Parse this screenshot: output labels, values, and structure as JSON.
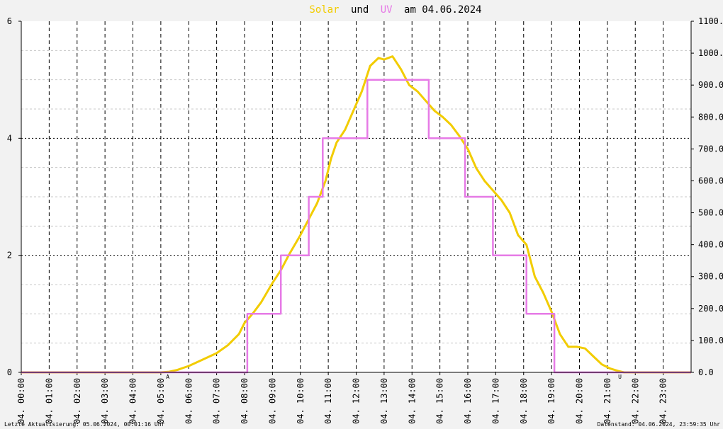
{
  "title": {
    "w1": "Solar",
    "w2": "und",
    "w3": "UV",
    "w4": "am 04.06.2024"
  },
  "footer": {
    "left": "Letzte Aktualisierung: 05.06.2024, 00:01:16 Uhr",
    "right": "Datenstand: 04.06.2024, 23:59:35 Uhr"
  },
  "markers": {
    "sunrise": "A",
    "sunset": "U"
  },
  "colors": {
    "solar": "#f2cc00",
    "uv": "#e67ae6",
    "sunmark": "#cc0000",
    "grid": "#000000"
  },
  "chart_data": {
    "type": "line",
    "title": "Solar und UV am 04.06.2024",
    "x_axis": {
      "range_hours": [
        0,
        24
      ],
      "tick_labels": [
        "04. 00:00",
        "04. 01:00",
        "04. 02:00",
        "04. 03:00",
        "04. 04:00",
        "04. 05:00",
        "04. 06:00",
        "04. 07:00",
        "04. 08:00",
        "04. 09:00",
        "04. 10:00",
        "04. 11:00",
        "04. 12:00",
        "04. 13:00",
        "04. 14:00",
        "04. 15:00",
        "04. 16:00",
        "04. 17:00",
        "04. 18:00",
        "04. 19:00",
        "04. 20:00",
        "04. 21:00",
        "04. 22:00",
        "04. 23:00"
      ]
    },
    "y_left": {
      "range": [
        0,
        6
      ],
      "tick_labels": [
        "0",
        "2",
        "4",
        "6"
      ],
      "minor_step": 0.5
    },
    "y_right": {
      "range": [
        0,
        1100
      ],
      "tick_labels": [
        "0.0",
        "100.0",
        "200.0",
        "300.0",
        "400.0",
        "500.0",
        "600.0",
        "700.0",
        "800.0",
        "900.0",
        "1000.0",
        "1100.0"
      ]
    },
    "grid": true,
    "sun_markers_hours": {
      "sunrise": 5.25,
      "sunset": 21.45
    },
    "series": [
      {
        "name": "Solar",
        "axis": "right",
        "color": "#f2cc00",
        "points": [
          [
            0,
            0
          ],
          [
            5.0,
            0
          ],
          [
            5.3,
            2
          ],
          [
            5.6,
            8
          ],
          [
            6.0,
            20
          ],
          [
            6.5,
            40
          ],
          [
            7.0,
            60
          ],
          [
            7.4,
            85
          ],
          [
            7.8,
            120
          ],
          [
            8.0,
            155
          ],
          [
            8.3,
            185
          ],
          [
            8.6,
            220
          ],
          [
            9.0,
            280
          ],
          [
            9.3,
            320
          ],
          [
            9.6,
            370
          ],
          [
            10.0,
            430
          ],
          [
            10.3,
            480
          ],
          [
            10.6,
            530
          ],
          [
            10.9,
            600
          ],
          [
            11.1,
            670
          ],
          [
            11.3,
            720
          ],
          [
            11.6,
            760
          ],
          [
            11.9,
            820
          ],
          [
            12.2,
            880
          ],
          [
            12.5,
            960
          ],
          [
            12.8,
            985
          ],
          [
            13.0,
            980
          ],
          [
            13.3,
            990
          ],
          [
            13.6,
            950
          ],
          [
            13.9,
            900
          ],
          [
            14.2,
            880
          ],
          [
            14.5,
            850
          ],
          [
            14.8,
            820
          ],
          [
            15.1,
            800
          ],
          [
            15.4,
            775
          ],
          [
            15.7,
            740
          ],
          [
            16.0,
            700
          ],
          [
            16.3,
            640
          ],
          [
            16.6,
            600
          ],
          [
            16.9,
            570
          ],
          [
            17.2,
            540
          ],
          [
            17.5,
            500
          ],
          [
            17.8,
            430
          ],
          [
            18.1,
            400
          ],
          [
            18.4,
            300
          ],
          [
            18.7,
            250
          ],
          [
            19.0,
            190
          ],
          [
            19.3,
            120
          ],
          [
            19.6,
            80
          ],
          [
            19.9,
            80
          ],
          [
            20.2,
            75
          ],
          [
            20.5,
            50
          ],
          [
            20.8,
            25
          ],
          [
            21.1,
            12
          ],
          [
            21.4,
            4
          ],
          [
            21.6,
            0
          ],
          [
            24,
            0
          ]
        ]
      },
      {
        "name": "UV",
        "axis": "left",
        "color": "#e67ae6",
        "levels": [
          0,
          1,
          2,
          3,
          4,
          5
        ],
        "points": [
          [
            0,
            0
          ],
          [
            8.1,
            0
          ],
          [
            8.1,
            1
          ],
          [
            9.3,
            1
          ],
          [
            9.3,
            2
          ],
          [
            10.3,
            2
          ],
          [
            10.3,
            3
          ],
          [
            10.8,
            3
          ],
          [
            10.8,
            4
          ],
          [
            12.4,
            4
          ],
          [
            12.4,
            5
          ],
          [
            14.6,
            5
          ],
          [
            14.6,
            4
          ],
          [
            15.9,
            4
          ],
          [
            15.9,
            3
          ],
          [
            16.9,
            3
          ],
          [
            16.9,
            2
          ],
          [
            18.1,
            2
          ],
          [
            18.1,
            1
          ],
          [
            19.1,
            1
          ],
          [
            19.1,
            0
          ],
          [
            24,
            0
          ]
        ]
      }
    ]
  }
}
